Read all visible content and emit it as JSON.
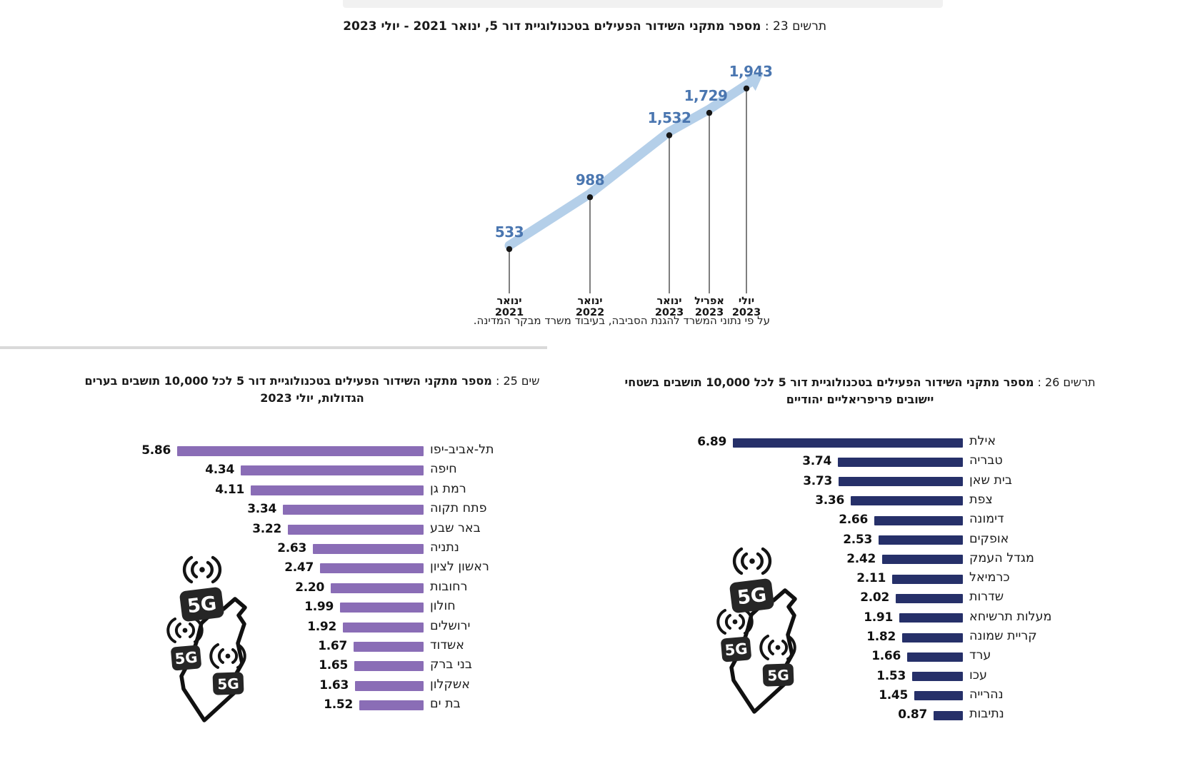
{
  "page": {
    "background": "#ffffff"
  },
  "icons": {
    "badge_label": "5G",
    "map_icon": "5g-broadcast-israel-map-icon",
    "antenna_icon": "antenna-waves-icon"
  },
  "chart_data": [
    {
      "type": "line",
      "title_prefix": "תרשים 23 :",
      "title": "מספר מתקני השידור הפעילים בטכנולוגיית דור 5, ינואר 2021 - יולי 2023",
      "values": [
        533,
        988,
        1532,
        1729,
        1943
      ],
      "value_labels": [
        "533",
        "988",
        "1,532",
        "1,729",
        "1,943"
      ],
      "x_labels": [
        {
          "month": "ינואר",
          "year": "2021"
        },
        {
          "month": "ינואר",
          "year": "2022"
        },
        {
          "month": "ינואר",
          "year": "2023"
        },
        {
          "month": "אפריל",
          "year": "2023"
        },
        {
          "month": "יולי",
          "year": "2023"
        }
      ],
      "source_note": "על פי נתוני המשרד להגנת הסביבה, בעיבוד משרד מבקר המדינה.",
      "line_color": "#b4cfe9",
      "value_label_color": "#4a76b0",
      "point_color": "#161616"
    },
    {
      "type": "bar",
      "title_prefix": "שים 25 :",
      "title": "מספר מתקני השידור הפעילים בטכנולוגיית דור 5 לכל 10,000 תושבים בערים",
      "title_line2": "הגדולות, יולי 2023",
      "categories": [
        "תל-אביב-יפו",
        "חיפה",
        "רמת גן",
        "פתח תקוה",
        "באר שבע",
        "נתניה",
        "ראשון לציון",
        "רחובות",
        "חולון",
        "ירושלים",
        "אשדוד",
        "בני ברק",
        "אשקלון",
        "בת ים"
      ],
      "values": [
        5.86,
        4.34,
        4.11,
        3.34,
        3.22,
        2.63,
        2.47,
        2.2,
        1.99,
        1.92,
        1.67,
        1.65,
        1.63,
        1.52
      ],
      "value_labels": [
        "5.86",
        "4.34",
        "4.11",
        "3.34",
        "3.22",
        "2.63",
        "2.47",
        "2.20",
        "1.99",
        "1.92",
        "1.67",
        "1.65",
        "1.63",
        "1.52"
      ],
      "bar_color": "#8a6db6"
    },
    {
      "type": "bar",
      "title_prefix": "תרשים 26 :",
      "title": "מספר מתקני השידור הפעילים בטכנולוגיית דור 5 לכל 10,000 תושבים בשטחי",
      "title_line2": "יישובים פריפריאליים יהודיים",
      "categories": [
        "אילת",
        "טבריה",
        "בית שאן",
        "צפת",
        "דימונה",
        "אופקים",
        "מגדל העמק",
        "כרמיאל",
        "שדרות",
        "מעלות תרשיחא",
        "קריית שמונה",
        "ערד",
        "עכו",
        "נהרייה",
        "נתיבות"
      ],
      "values": [
        6.89,
        3.74,
        3.73,
        3.36,
        2.66,
        2.53,
        2.42,
        2.11,
        2.02,
        1.91,
        1.82,
        1.66,
        1.53,
        1.45,
        0.87
      ],
      "value_labels": [
        "6.89",
        "3.74",
        "3.73",
        "3.36",
        "2.66",
        "2.53",
        "2.42",
        "2.11",
        "2.02",
        "1.91",
        "1.82",
        "1.66",
        "1.53",
        "1.45",
        "0.87"
      ],
      "bar_color": "#263069"
    }
  ]
}
